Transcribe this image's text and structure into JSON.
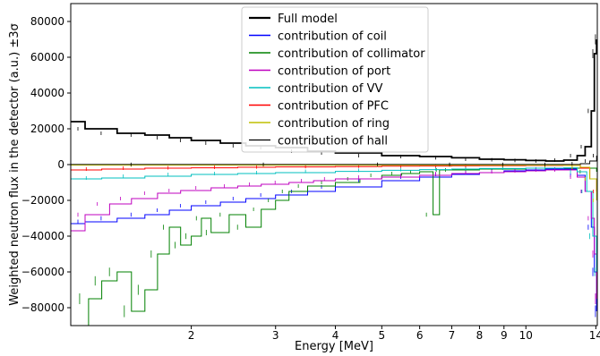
{
  "chart_data": {
    "type": "line",
    "title": "",
    "xlabel": "Energy [MeV]",
    "ylabel": "Weighted neutron flux in the detector (a.u.) ±3σ",
    "x_scale": "log",
    "xlim": [
      1.12,
      14.1
    ],
    "ylim": [
      -90000,
      90000
    ],
    "x_ticks": [
      2,
      3,
      4,
      5,
      6,
      7,
      8,
      9,
      10,
      14
    ],
    "x_tick_labels": [
      "2",
      "3",
      "4",
      "5",
      "6",
      "7",
      "8",
      "9",
      "10",
      "14"
    ],
    "y_ticks": [
      80000,
      60000,
      40000,
      20000,
      0,
      -20000,
      -40000,
      -60000,
      -80000
    ],
    "y_tick_labels": [
      "80000",
      "60000",
      "40000",
      "20000",
      "0",
      "−20000",
      "−40000",
      "−60000",
      "−80000"
    ],
    "grid": false,
    "legend_position": "top-center",
    "series": [
      {
        "name": "Full model",
        "color": "#000000",
        "style": "step",
        "line_width": 1.8,
        "x": [
          1.12,
          1.2,
          1.4,
          1.6,
          1.8,
          2.0,
          2.3,
          2.6,
          3.0,
          3.5,
          4.0,
          5.0,
          6.0,
          7.0,
          8.0,
          9.0,
          10.0,
          11.0,
          12.0,
          12.8,
          13.3,
          13.7,
          13.9,
          14.05
        ],
        "values": [
          24000,
          20000,
          17500,
          16500,
          15000,
          13500,
          12000,
          10500,
          9500,
          7500,
          6500,
          5000,
          4500,
          3800,
          3000,
          2700,
          2300,
          2000,
          2500,
          5000,
          10000,
          30000,
          62000,
          70000
        ]
      },
      {
        "name": "contribution of coil",
        "color": "#0000ff",
        "style": "step",
        "line_width": 1.0,
        "x": [
          1.12,
          1.2,
          1.4,
          1.6,
          1.8,
          2.0,
          2.3,
          2.6,
          3.0,
          3.5,
          4.0,
          5.0,
          6.0,
          7.0,
          8.0,
          9.0,
          10.0,
          11.0,
          12.0,
          12.8,
          13.3,
          13.7,
          13.9,
          14.05
        ],
        "values": [
          -33000,
          -32000,
          -30000,
          -28000,
          -25500,
          -23000,
          -21000,
          -19000,
          -17000,
          -15000,
          -12500,
          -9000,
          -7000,
          -5500,
          -4500,
          -3500,
          -3000,
          -2500,
          -2500,
          -6000,
          -15000,
          -35000,
          -60000,
          -82000
        ]
      },
      {
        "name": "contribution of collimator",
        "color": "#008000",
        "style": "step",
        "line_width": 1.0,
        "x": [
          1.12,
          1.22,
          1.3,
          1.4,
          1.5,
          1.6,
          1.7,
          1.8,
          1.9,
          2.0,
          2.1,
          2.2,
          2.4,
          2.6,
          2.8,
          3.0,
          3.2,
          3.5,
          4.0,
          4.5,
          5.0,
          5.5,
          6.0,
          6.4,
          6.6,
          7.0,
          8.0,
          10.0,
          12.0,
          14.05
        ],
        "values": [
          -90000,
          -75000,
          -65000,
          -60000,
          -82000,
          -70000,
          -50000,
          -35000,
          -45000,
          -40000,
          -30000,
          -38000,
          -28000,
          -35000,
          -25000,
          -20000,
          -15000,
          -12000,
          -10000,
          -8000,
          -6000,
          -5000,
          -4000,
          -28000,
          -3000,
          -3000,
          -2500,
          -2000,
          -2000,
          -4000
        ]
      },
      {
        "name": "contribution of port",
        "color": "#bf00bf",
        "style": "step",
        "line_width": 1.0,
        "x": [
          1.12,
          1.2,
          1.35,
          1.5,
          1.7,
          1.9,
          2.2,
          2.5,
          2.8,
          3.2,
          3.6,
          4.0,
          5.0,
          6.0,
          7.0,
          8.0,
          9.0,
          10.0,
          11.0,
          12.0,
          12.8,
          13.3,
          13.7,
          13.9,
          14.05
        ],
        "values": [
          -37000,
          -28000,
          -22000,
          -19000,
          -16000,
          -14500,
          -13000,
          -12000,
          -11000,
          -10000,
          -9000,
          -8000,
          -7000,
          -6000,
          -5000,
          -4500,
          -4000,
          -3500,
          -3000,
          -3000,
          -7000,
          -15000,
          -30000,
          -50000,
          -75000
        ]
      },
      {
        "name": "contribution of VV",
        "color": "#00bfbf",
        "style": "step",
        "line_width": 1.0,
        "x": [
          1.12,
          1.3,
          1.6,
          2.0,
          2.5,
          3.0,
          4.0,
          5.0,
          6.0,
          7.0,
          8.0,
          10.0,
          12.0,
          12.8,
          13.4,
          13.8,
          14.05
        ],
        "values": [
          -8000,
          -7500,
          -6500,
          -5500,
          -5000,
          -4500,
          -3800,
          -3200,
          -2800,
          -2500,
          -2200,
          -2000,
          -1800,
          -4000,
          -15000,
          -40000,
          -60000
        ]
      },
      {
        "name": "contribution of PFC",
        "color": "#ff0000",
        "style": "step",
        "line_width": 1.0,
        "x": [
          1.12,
          1.3,
          1.6,
          2.0,
          2.5,
          3.0,
          4.0,
          5.0,
          6.0,
          7.0,
          8.0,
          10.0,
          12.0,
          13.0,
          13.6,
          14.05
        ],
        "values": [
          -3000,
          -2500,
          -2000,
          -1800,
          -1500,
          -1300,
          -1100,
          -900,
          -800,
          -700,
          -600,
          -500,
          -400,
          -2000,
          -8000,
          -15000
        ]
      },
      {
        "name": "contribution of ring",
        "color": "#bfbf00",
        "style": "step",
        "line_width": 1.0,
        "x": [
          1.12,
          2.0,
          4.0,
          6.0,
          8.0,
          10.0,
          12.0,
          13.0,
          13.6,
          14.05
        ],
        "values": [
          -300,
          -300,
          -300,
          -300,
          -300,
          -300,
          -500,
          -1500,
          -8000,
          -20000
        ]
      },
      {
        "name": "contribution of hall",
        "color": "#000000",
        "style": "step",
        "line_width": 0.9,
        "x": [
          1.12,
          2.0,
          4.0,
          6.0,
          8.0,
          10.0,
          12.0,
          13.0,
          13.6,
          14.05
        ],
        "values": [
          100,
          100,
          100,
          100,
          100,
          100,
          100,
          500,
          2000,
          5000
        ]
      }
    ]
  }
}
